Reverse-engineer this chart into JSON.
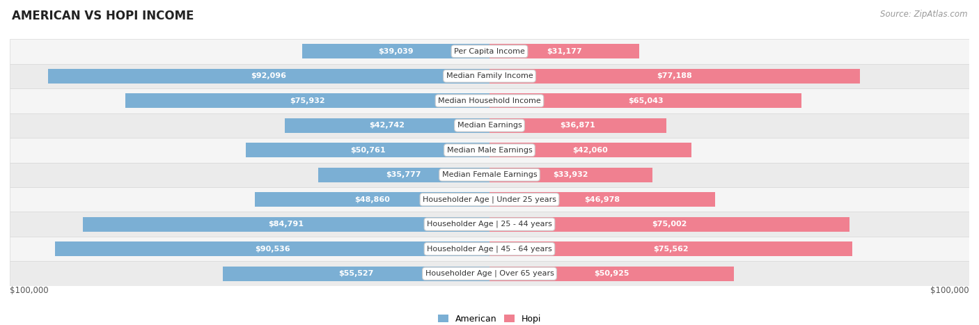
{
  "title": "AMERICAN VS HOPI INCOME",
  "source": "Source: ZipAtlas.com",
  "categories": [
    "Per Capita Income",
    "Median Family Income",
    "Median Household Income",
    "Median Earnings",
    "Median Male Earnings",
    "Median Female Earnings",
    "Householder Age | Under 25 years",
    "Householder Age | 25 - 44 years",
    "Householder Age | 45 - 64 years",
    "Householder Age | Over 65 years"
  ],
  "american_values": [
    39039,
    92096,
    75932,
    42742,
    50761,
    35777,
    48860,
    84791,
    90536,
    55527
  ],
  "hopi_values": [
    31177,
    77188,
    65043,
    36871,
    42060,
    33932,
    46978,
    75002,
    75562,
    50925
  ],
  "max_value": 100000,
  "american_color": "#7bafd4",
  "hopi_color": "#f08090",
  "background_color": "#ffffff",
  "row_colors": [
    "#f5f5f5",
    "#ebebeb"
  ],
  "row_edge_color": "#d8d8d8",
  "center_label_bg": "#ffffff",
  "center_label_edge": "#cccccc",
  "xlabel_left": "$100,000",
  "xlabel_right": "$100,000",
  "legend_american": "American",
  "legend_hopi": "Hopi",
  "title_fontsize": 12,
  "source_fontsize": 8.5,
  "bar_label_fontsize": 8,
  "category_fontsize": 8,
  "axis_label_fontsize": 8.5,
  "white_label_threshold": 20000,
  "bar_height": 0.6
}
